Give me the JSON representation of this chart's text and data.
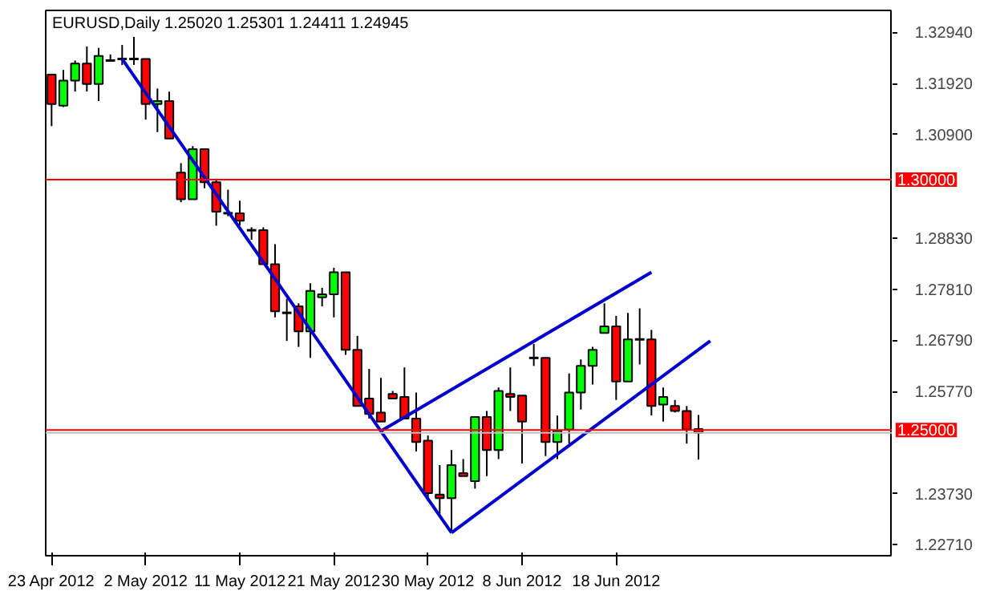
{
  "chart_data": {
    "type": "candlestick",
    "title": "EURUSD,Daily  1.25020 1.25301 1.24411 1.24945",
    "categories": [
      "23 Apr 2012",
      null,
      null,
      null,
      null,
      null,
      null,
      null,
      "2 May 2012",
      null,
      null,
      null,
      null,
      null,
      null,
      null,
      "11 May 2012",
      null,
      null,
      null,
      null,
      null,
      null,
      null,
      "21 May 2012",
      null,
      null,
      null,
      null,
      null,
      null,
      null,
      "30 May 2012",
      null,
      null,
      null,
      null,
      null,
      null,
      null,
      "8 Jun 2012",
      null,
      null,
      null,
      null,
      null,
      null,
      null,
      "18 Jun 2012",
      null,
      null,
      null,
      null,
      null,
      null,
      null,
      null,
      null,
      null,
      null,
      null,
      null,
      null,
      null,
      null,
      null,
      null,
      null,
      null,
      null,
      null,
      null
    ],
    "ohlc": [
      [
        1.321,
        1.321,
        1.3107,
        1.3151
      ],
      [
        1.3148,
        1.3219,
        1.3145,
        1.3198
      ],
      [
        1.3198,
        1.3238,
        1.3176,
        1.3232
      ],
      [
        1.3232,
        1.3266,
        1.3176,
        1.3191
      ],
      [
        1.3191,
        1.3263,
        1.3157,
        1.3247
      ],
      [
        1.3238,
        1.325,
        1.3238,
        1.3238
      ],
      [
        1.3241,
        1.3269,
        1.3229,
        1.3241
      ],
      [
        1.3241,
        1.3285,
        1.3229,
        1.3241
      ],
      [
        1.3241,
        1.3241,
        1.312,
        1.3151
      ],
      [
        1.3151,
        1.3182,
        1.3095,
        1.3157
      ],
      [
        1.3157,
        1.3176,
        1.3082,
        1.3082
      ],
      [
        1.3014,
        1.3033,
        1.2955,
        1.2961
      ],
      [
        1.2961,
        1.3067,
        1.2961,
        1.3061
      ],
      [
        1.3061,
        1.3061,
        1.2983,
        1.2995
      ],
      [
        1.2995,
        1.3002,
        1.2908,
        1.2936
      ],
      [
        1.2933,
        1.298,
        1.2927,
        1.2933
      ],
      [
        1.2933,
        1.2958,
        1.2908,
        1.2918
      ],
      [
        1.2899,
        1.2905,
        1.288,
        1.2899
      ],
      [
        1.2899,
        1.2905,
        1.2831,
        1.2831
      ],
      [
        1.2831,
        1.2871,
        1.2725,
        1.2737
      ],
      [
        1.2734,
        1.2762,
        1.2678,
        1.2734
      ],
      [
        1.2747,
        1.2753,
        1.2666,
        1.2697
      ],
      [
        1.2697,
        1.2793,
        1.2644,
        1.2778
      ],
      [
        1.2765,
        1.2784,
        1.2747,
        1.2771
      ],
      [
        1.2771,
        1.2824,
        1.2725,
        1.2815
      ],
      [
        1.2815,
        1.2815,
        1.265,
        1.266
      ],
      [
        1.266,
        1.2688,
        1.2548,
        1.2548
      ],
      [
        1.2563,
        1.2622,
        1.2523,
        1.2532
      ],
      [
        1.2535,
        1.2604,
        1.2517,
        1.2517
      ],
      [
        1.2572,
        1.2578,
        1.2563,
        1.2563
      ],
      [
        1.2566,
        1.2625,
        1.2523,
        1.2523
      ],
      [
        1.2523,
        1.2575,
        1.2457,
        1.2476
      ],
      [
        1.2479,
        1.2489,
        1.2358,
        1.2374
      ],
      [
        1.2371,
        1.243,
        1.2333,
        1.2364
      ],
      [
        1.2364,
        1.246,
        1.2295,
        1.243
      ],
      [
        1.2414,
        1.2442,
        1.2408,
        1.2408
      ],
      [
        1.2398,
        1.2526,
        1.2383,
        1.2526
      ],
      [
        1.2526,
        1.2538,
        1.2408,
        1.246
      ],
      [
        1.246,
        1.2585,
        1.2442,
        1.2578
      ],
      [
        1.2572,
        1.2625,
        1.2538,
        1.2566
      ],
      [
        1.2569,
        1.2569,
        1.2433,
        1.2517
      ],
      [
        1.2644,
        1.2672,
        1.2628,
        1.2644
      ],
      [
        1.2644,
        1.2644,
        1.2448,
        1.2476
      ],
      [
        1.2476,
        1.2529,
        1.2442,
        1.2498
      ],
      [
        1.2501,
        1.2613,
        1.2473,
        1.2575
      ],
      [
        1.2575,
        1.2641,
        1.2541,
        1.2628
      ],
      [
        1.2628,
        1.2666,
        1.2591,
        1.266
      ],
      [
        1.2694,
        1.2753,
        1.2694,
        1.2707
      ],
      [
        1.2707,
        1.2728,
        1.256,
        1.2597
      ],
      [
        1.2597,
        1.2734,
        1.2597,
        1.2681
      ],
      [
        1.2681,
        1.2743,
        1.2631,
        1.2681
      ],
      [
        1.2681,
        1.27,
        1.2529,
        1.2548
      ],
      [
        1.2551,
        1.2585,
        1.2517,
        1.2566
      ],
      [
        1.2548,
        1.256,
        1.2535,
        1.2538
      ],
      [
        1.2538,
        1.2548,
        1.2473,
        1.2501
      ],
      [
        1.2502,
        1.253,
        1.2441,
        1.2495
      ],
      null,
      null,
      null,
      null,
      null,
      null,
      null,
      null,
      null,
      null,
      null,
      null,
      null,
      null,
      null,
      null
    ],
    "colors": [
      "#ff0000",
      "#00ff00",
      "#00ff00",
      "#ff0000",
      "#00ff00",
      "#000000",
      "#000000",
      "#000000",
      "#ff0000",
      "#00ff00",
      "#ff0000",
      "#ff0000",
      "#00ff00",
      "#ff0000",
      "#ff0000",
      "#000000",
      "#ff0000",
      "#000000",
      "#ff0000",
      "#ff0000",
      "#000000",
      "#ff0000",
      "#00ff00",
      "#00ff00",
      "#00ff00",
      "#ff0000",
      "#ff0000",
      "#ff0000",
      "#ff0000",
      "#ff0000",
      "#ff0000",
      "#ff0000",
      "#ff0000",
      "#ff0000",
      "#00ff00",
      "#ff0000",
      "#00ff00",
      "#ff0000",
      "#00ff00",
      "#ff0000",
      "#ff0000",
      "#000000",
      "#ff0000",
      "#00ff00",
      "#00ff00",
      "#00ff00",
      "#00ff00",
      "#00ff00",
      "#ff0000",
      "#00ff00",
      "#000000",
      "#ff0000",
      "#00ff00",
      "#ff0000",
      "#ff0000",
      "#ff0000",
      null,
      null,
      null,
      null,
      null,
      null,
      null,
      null,
      null,
      null,
      null,
      null,
      null,
      null,
      null,
      null
    ],
    "series": [
      {
        "type": "line",
        "color": "#0000cc",
        "values": [
          null,
          null,
          null,
          null,
          null,
          null,
          1.3241,
          null,
          null,
          null,
          null,
          null,
          null,
          null,
          null,
          null,
          null,
          null,
          null,
          null,
          null,
          null,
          null,
          null,
          null,
          null,
          null,
          null,
          null,
          null,
          null,
          null,
          null,
          null,
          1.2295,
          null,
          null,
          null,
          null,
          null,
          null,
          null,
          null,
          null,
          null,
          null,
          null,
          null,
          null,
          null,
          null,
          null,
          null,
          null,
          null,
          null,
          null,
          null,
          null,
          null,
          null,
          null,
          null,
          null,
          null,
          null,
          null,
          null,
          null,
          null,
          null,
          null
        ]
      },
      {
        "type": "line",
        "color": "#0000cc",
        "values": [
          null,
          null,
          null,
          null,
          null,
          null,
          null,
          null,
          null,
          null,
          null,
          null,
          null,
          null,
          null,
          null,
          null,
          null,
          null,
          null,
          null,
          null,
          null,
          null,
          null,
          null,
          null,
          null,
          1.2498,
          null,
          null,
          null,
          null,
          null,
          null,
          null,
          null,
          null,
          null,
          null,
          null,
          null,
          null,
          null,
          null,
          null,
          null,
          null,
          null,
          null,
          null,
          1.2815,
          null,
          null,
          null,
          null,
          null,
          null,
          null,
          null,
          null,
          null,
          null,
          null,
          null,
          null,
          null,
          null,
          null,
          null,
          null,
          null
        ]
      },
      {
        "type": "line",
        "color": "#0000cc",
        "values": [
          null,
          null,
          null,
          null,
          null,
          null,
          null,
          null,
          null,
          null,
          null,
          null,
          null,
          null,
          null,
          null,
          null,
          null,
          null,
          null,
          null,
          null,
          null,
          null,
          null,
          null,
          null,
          null,
          null,
          null,
          null,
          null,
          null,
          null,
          1.2295,
          null,
          null,
          null,
          null,
          null,
          null,
          null,
          null,
          null,
          null,
          null,
          null,
          null,
          null,
          null,
          null,
          null,
          null,
          null,
          null,
          null,
          1.2678,
          null,
          null,
          null,
          null,
          null,
          null,
          null,
          null,
          null,
          null,
          null,
          null,
          null,
          null,
          null
        ]
      }
    ],
    "ylim": [
      1.2249,
      1.3338
    ],
    "yticks": [
      {
        "value": 1.3294,
        "label": "1.32940"
      },
      {
        "value": 1.3192,
        "label": "1.31920"
      },
      {
        "value": 1.309,
        "label": "1.30900"
      },
      {
        "value": 1.2883,
        "label": "1.28830"
      },
      {
        "value": 1.2781,
        "label": "1.27810"
      },
      {
        "value": 1.2679,
        "label": "1.26790"
      },
      {
        "value": 1.2577,
        "label": "1.25770"
      },
      {
        "value": 1.2373,
        "label": "1.23730"
      },
      {
        "value": 1.2271,
        "label": "1.22710"
      }
    ],
    "ref_lines": [
      {
        "axis": "y",
        "value": 1.3,
        "label": "1.30000",
        "color": "#ff0000"
      },
      {
        "axis": "y",
        "value": 1.25,
        "label": "1.25000",
        "color": "#ff0000"
      },
      {
        "axis": "y",
        "value": 1.24945,
        "label": null,
        "color": "#c0c0c0"
      }
    ],
    "grid": false
  }
}
